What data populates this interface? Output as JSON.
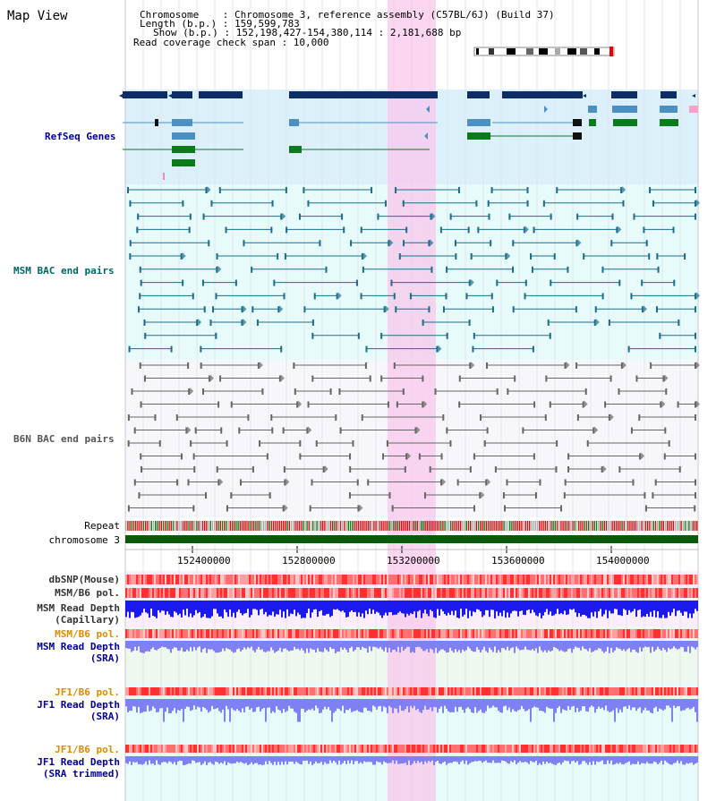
{
  "title": "Map View",
  "info": {
    "chromosome": "Chromosome    : Chromosome 3, reference assembly (C57BL/6J) (Build 37)",
    "length": "Length (b.p.) : 159,599,783",
    "show": "Show (b.p.) : 152,198,427-154,380,114 : 2,181,688 bp",
    "coverage": "Read coverage check span : 10,000"
  },
  "tracks": {
    "refseq": "RefSeq Genes",
    "msm_bac": "MSM BAC end pairs",
    "b6n_bac": "B6N BAC end pairs",
    "repeat": "Repeat",
    "chromosome": "chromosome 3",
    "dbsnp": "dbSNP(Mouse)",
    "msm_b6_pol_1": "MSM/B6 pol.",
    "msm_depth_cap_1": "MSM Read Depth",
    "msm_depth_cap_2": "(Capillary)",
    "msm_b6_pol_2": "MSM/B6 pol.",
    "msm_depth_sra_1": "MSM Read Depth",
    "msm_depth_sra_2": "(SRA)",
    "jf1_pol_1": "JF1/B6 pol.",
    "jf1_depth_1": "JF1 Read Depth",
    "jf1_depth_2": "(SRA)",
    "jf1_pol_2": "JF1/B6 pol.",
    "jf1_trim_1": "JF1 Read Depth",
    "jf1_trim_2": "(SRA trimmed)"
  },
  "axis_ticks": [
    "152400000",
    "152800000",
    "153200000",
    "153600000",
    "154000000"
  ],
  "colors": {
    "refseq_bg": "#dbf0fb",
    "msm_bg": "#e8fbfb",
    "b6n_bg": "#f7f7fb",
    "highlight": "#f8c8ec",
    "gene_dark": "#0d2d66",
    "gene_blue": "#4a90c4",
    "gene_green": "#0a7a1a",
    "bac_msm": "#1a6e8c",
    "bac_b6n": "#666666",
    "depth_blue": "#1a1aee",
    "depth_light": "#8080f4",
    "label_blue": "#000099",
    "label_teal": "#006666",
    "label_orange": "#e08a00"
  }
}
